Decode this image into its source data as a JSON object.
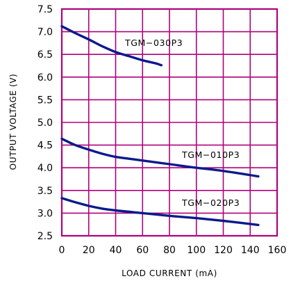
{
  "chart_data": {
    "type": "line",
    "title": "",
    "xlabel": "LOAD CURRENT (mA)",
    "ylabel": "OUTPUT VOLTAGE (V)",
    "xlim": [
      0,
      160
    ],
    "ylim": [
      2.5,
      7.5
    ],
    "xticks": [
      "0",
      "20",
      "40",
      "60",
      "80",
      "100",
      "120",
      "140",
      "160"
    ],
    "yticks": [
      "2.5",
      "3.0",
      "3.5",
      "4.0",
      "4.5",
      "5.0",
      "5.5",
      "6.0",
      "6.5",
      "7.0",
      "7.5"
    ],
    "grid": true,
    "colors": {
      "grid": "#b0007a",
      "series": "#0a1a8c",
      "frame": "#b0007a"
    },
    "series": [
      {
        "name": "TGM−030P3",
        "x": [
          0,
          10,
          20,
          30,
          40,
          50,
          60,
          70,
          74
        ],
        "y": [
          7.12,
          6.97,
          6.83,
          6.68,
          6.55,
          6.46,
          6.37,
          6.3,
          6.26
        ]
      },
      {
        "name": "TGM−010P3",
        "x": [
          0,
          10,
          20,
          30,
          40,
          50,
          60,
          80,
          100,
          120,
          146
        ],
        "y": [
          4.64,
          4.5,
          4.4,
          4.31,
          4.24,
          4.2,
          4.16,
          4.08,
          4.0,
          3.93,
          3.81
        ]
      },
      {
        "name": "TGM−020P3",
        "x": [
          0,
          10,
          20,
          30,
          40,
          60,
          80,
          100,
          120,
          146
        ],
        "y": [
          3.33,
          3.24,
          3.16,
          3.1,
          3.06,
          3.0,
          2.94,
          2.89,
          2.83,
          2.74
        ]
      }
    ]
  }
}
